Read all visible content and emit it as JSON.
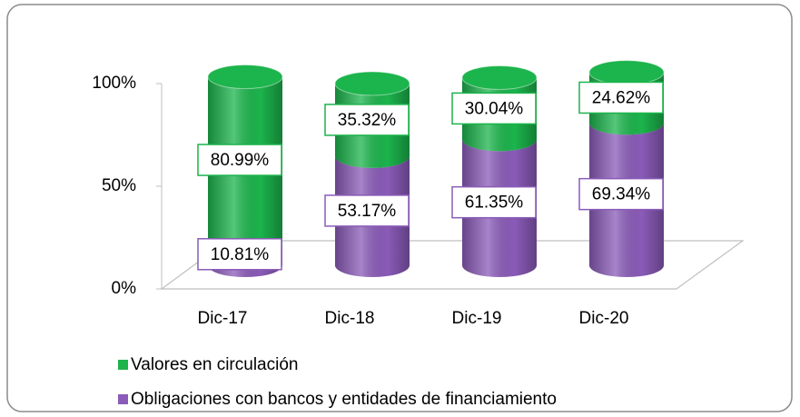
{
  "chart_data": {
    "type": "cylinder-stacked",
    "categories": [
      "Dic-17",
      "Dic-18",
      "Dic-19",
      "Dic-20"
    ],
    "series": [
      {
        "name": "Obligaciones con bancos y entidades de financiamiento",
        "color": "#8a5bb8",
        "values": [
          10.81,
          53.17,
          61.35,
          69.34
        ],
        "value_labels": [
          "10.81%",
          "53.17%",
          "61.35%",
          "69.34%"
        ]
      },
      {
        "name": "Valores en circulación",
        "color": "#1cb44c",
        "values": [
          80.99,
          35.32,
          30.04,
          24.62
        ],
        "value_labels": [
          "80.99%",
          "35.32%",
          "30.04%",
          "24.62%"
        ]
      }
    ],
    "ylim": [
      0,
      100
    ],
    "yticks": [
      {
        "value": 0,
        "label": "0%"
      },
      {
        "value": 50,
        "label": "50%"
      },
      {
        "value": 100,
        "label": "100%"
      }
    ],
    "legend": "bottom"
  }
}
